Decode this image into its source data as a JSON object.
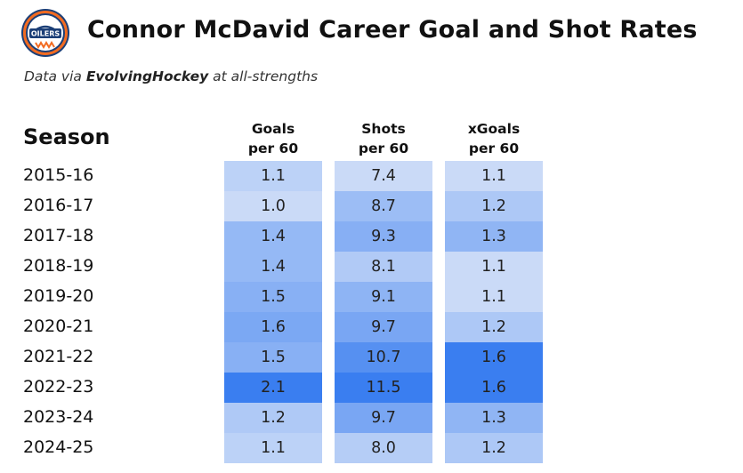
{
  "header": {
    "title": "Connor McDavid Career Goal and Shot Rates",
    "subtitle_prefix": "Data via ",
    "subtitle_source": "EvolvingHockey",
    "subtitle_suffix": " at all-strengths",
    "logo_text": "OILERS"
  },
  "colors": {
    "logo_navy": "#1c3f77",
    "logo_orange": "#f26b21",
    "cell_light": "#d6e2f8",
    "cell_dark": "#3a7ef0"
  },
  "chart_data": {
    "type": "table",
    "row_header": "Season",
    "columns": [
      {
        "key": "goals",
        "line1": "Goals",
        "line2": "per 60"
      },
      {
        "key": "shots",
        "line1": "Shots",
        "line2": "per 60"
      },
      {
        "key": "xgoals",
        "line1": "xGoals",
        "line2": "per 60"
      }
    ],
    "seasons": [
      "2015-16",
      "2016-17",
      "2017-18",
      "2018-19",
      "2019-20",
      "2020-21",
      "2021-22",
      "2022-23",
      "2023-24",
      "2024-25"
    ],
    "values": {
      "goals": [
        "1.1",
        "1.0",
        "1.4",
        "1.4",
        "1.5",
        "1.6",
        "1.5",
        "2.1",
        "1.2",
        "1.1"
      ],
      "shots": [
        "7.4",
        "8.7",
        "9.3",
        "8.1",
        "9.1",
        "9.7",
        "10.7",
        "11.5",
        "9.7",
        "8.0"
      ],
      "xgoals": [
        "1.1",
        "1.2",
        "1.3",
        "1.1",
        "1.1",
        "1.2",
        "1.6",
        "1.6",
        "1.3",
        "1.2"
      ]
    }
  }
}
